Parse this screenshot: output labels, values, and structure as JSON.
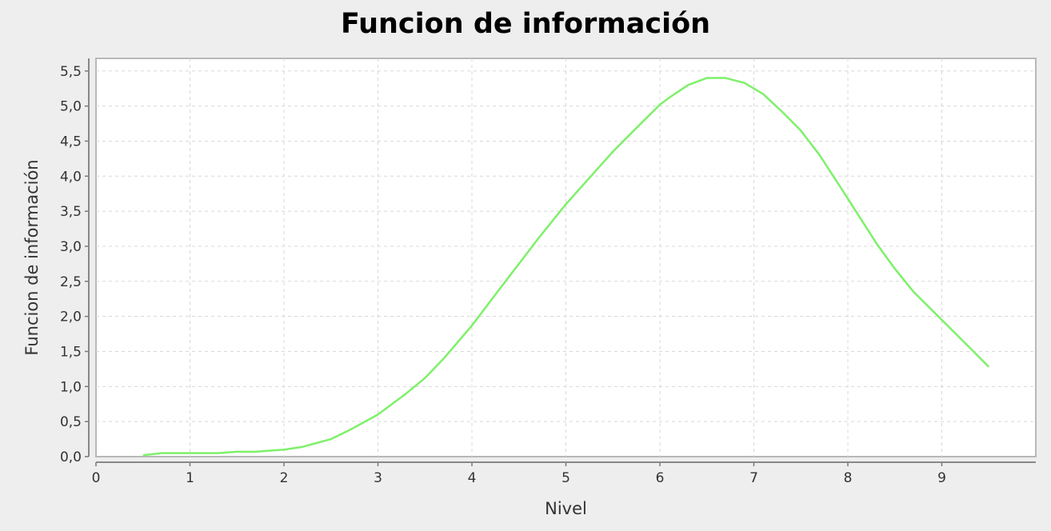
{
  "chart_data": {
    "type": "line",
    "title": "Funcion de información",
    "xlabel": "Nivel",
    "ylabel": "Funcion de información",
    "xlim": [
      0,
      10
    ],
    "ylim": [
      0,
      5.68
    ],
    "x_ticks": [
      "0",
      "1",
      "2",
      "3",
      "4",
      "5",
      "6",
      "7",
      "8",
      "9"
    ],
    "y_ticks": [
      "0,0",
      "0,5",
      "1,0",
      "1,5",
      "2,0",
      "2,5",
      "3,0",
      "3,5",
      "4,0",
      "4,5",
      "5,0",
      "5,5"
    ],
    "grid": true,
    "legend": "none",
    "series": [
      {
        "color": "#7ef06a",
        "x": [
          0.5,
          0.7,
          1.0,
          1.3,
          1.5,
          1.7,
          2.0,
          2.2,
          2.5,
          2.7,
          3.0,
          3.3,
          3.5,
          3.7,
          4.0,
          4.3,
          4.5,
          4.7,
          5.0,
          5.3,
          5.5,
          5.7,
          6.0,
          6.1,
          6.3,
          6.5,
          6.7,
          6.9,
          7.1,
          7.3,
          7.5,
          7.7,
          8.0,
          8.3,
          8.5,
          8.7,
          9.0,
          9.3,
          9.5
        ],
        "y": [
          0.02,
          0.05,
          0.05,
          0.05,
          0.07,
          0.07,
          0.1,
          0.14,
          0.25,
          0.38,
          0.6,
          0.9,
          1.12,
          1.4,
          1.87,
          2.4,
          2.75,
          3.1,
          3.6,
          4.05,
          4.35,
          4.62,
          5.02,
          5.12,
          5.3,
          5.4,
          5.4,
          5.33,
          5.17,
          4.92,
          4.65,
          4.3,
          3.68,
          3.05,
          2.68,
          2.35,
          1.95,
          1.55,
          1.28
        ]
      }
    ]
  }
}
